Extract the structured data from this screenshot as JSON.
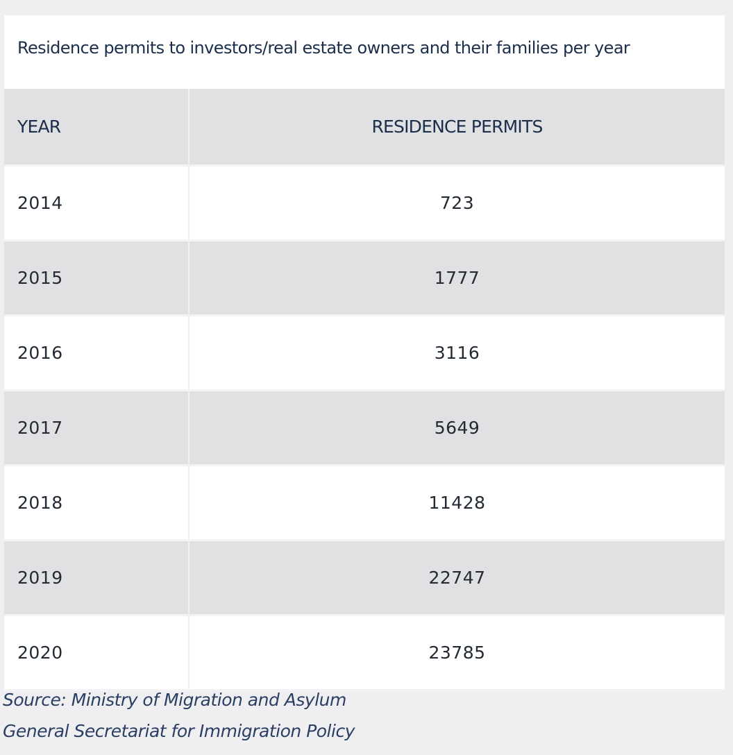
{
  "chart_data": {
    "type": "table",
    "title": "Residence permits to investors/real estate owners and their families per year",
    "columns": [
      "YEAR",
      "RESIDENCE PERMITS"
    ],
    "rows": [
      {
        "year": "2014",
        "permits": "723"
      },
      {
        "year": "2015",
        "permits": "1777"
      },
      {
        "year": "2016",
        "permits": "3116"
      },
      {
        "year": "2017",
        "permits": "5649"
      },
      {
        "year": "2018",
        "permits": "11428"
      },
      {
        "year": "2019",
        "permits": "22747"
      },
      {
        "year": "2020",
        "permits": "23785"
      }
    ],
    "source_lines": [
      "Source: Ministry of Migration and Asylum",
      "General Secretariat for Immigration Policy"
    ]
  },
  "colors": {
    "header_band": "#e1e1e4",
    "title_text": "#1b2e4a",
    "source_text": "#2a3f63"
  }
}
